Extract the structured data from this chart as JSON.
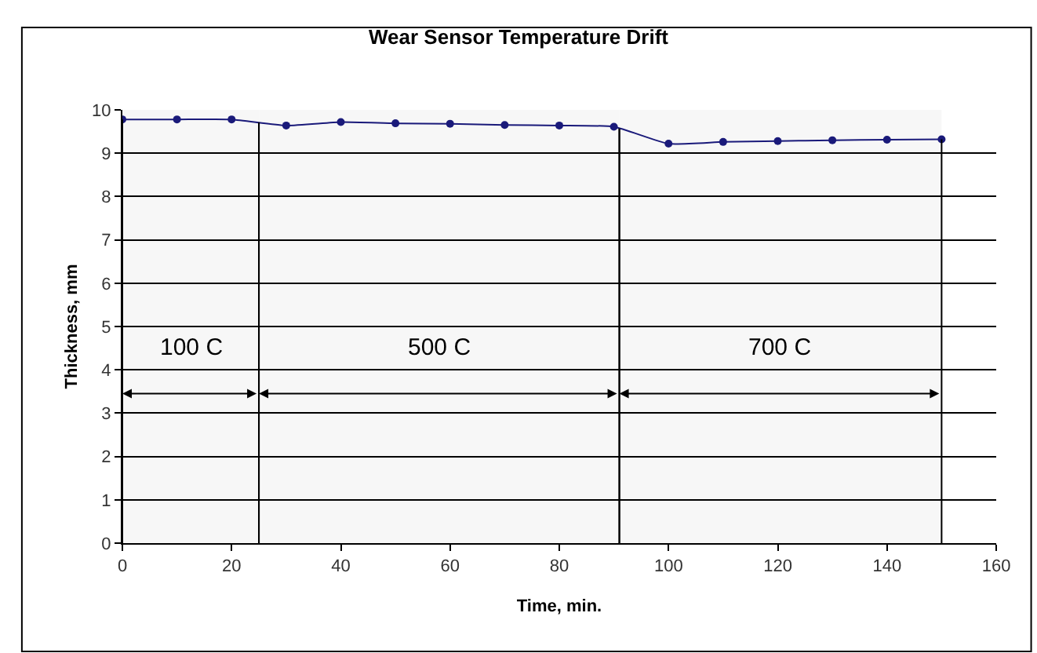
{
  "chart_data": {
    "type": "line",
    "title": "Wear Sensor Temperature Drift",
    "xlabel": "Time, min.",
    "ylabel": "Thickness, mm",
    "x": [
      0,
      10,
      20,
      30,
      40,
      50,
      60,
      70,
      80,
      90,
      100,
      110,
      120,
      130,
      140,
      150
    ],
    "series": [
      {
        "color": "#1a1a7a",
        "values": [
          9.78,
          9.78,
          9.78,
          9.64,
          9.72,
          9.69,
          9.68,
          9.65,
          9.64,
          9.61,
          9.22,
          9.26,
          9.28,
          9.3,
          9.31,
          9.32
        ]
      }
    ],
    "xlim": [
      0,
      160
    ],
    "xticks": [
      0,
      20,
      40,
      60,
      80,
      100,
      120,
      140,
      160
    ],
    "ylim": [
      0,
      10
    ],
    "yticks": [
      0,
      1,
      2,
      3,
      4,
      5,
      6,
      7,
      8,
      9,
      10
    ],
    "bands": [
      {
        "axis": "x",
        "from": 0,
        "to": 25,
        "label": "100 C"
      },
      {
        "axis": "x",
        "from": 25,
        "to": 91,
        "label": "500 C"
      },
      {
        "axis": "x",
        "from": 91,
        "to": 150,
        "label": "700 C"
      }
    ],
    "grid": "y",
    "marker": "circle",
    "line_style": "solid"
  }
}
